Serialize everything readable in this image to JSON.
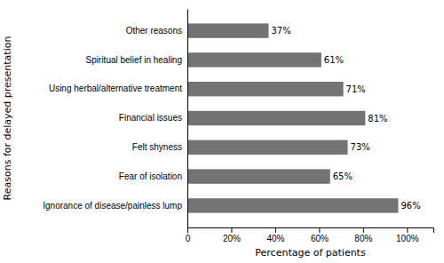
{
  "chart_data": {
    "type": "bar",
    "orientation": "horizontal",
    "categories": [
      "Ignorance of disease/painless lump",
      "Fear of isolation",
      "Felt shyness",
      "Financial issues",
      "Using herbal/alternative treatment",
      "Spiritual belief in healing",
      "Other reasons"
    ],
    "values": [
      96,
      65,
      73,
      81,
      71,
      61,
      37
    ],
    "value_labels": [
      "96%",
      "65%",
      "73%",
      "81%",
      "71%",
      "61%",
      "37%"
    ],
    "data_labels": true,
    "color": "#737373",
    "xlabel": "Percentage of patients",
    "ylabel": "Reasons for delayed presentation",
    "xlim": [
      0,
      112
    ],
    "xticks": [
      0,
      {
        "value": 20,
        "label": "20%"
      },
      {
        "value": 40,
        "label": "40%"
      },
      {
        "value": 60,
        "label": "60%"
      },
      {
        "value": 80,
        "label": "80%"
      },
      {
        "value": 100,
        "label": "100%"
      }
    ],
    "grid": false
  }
}
